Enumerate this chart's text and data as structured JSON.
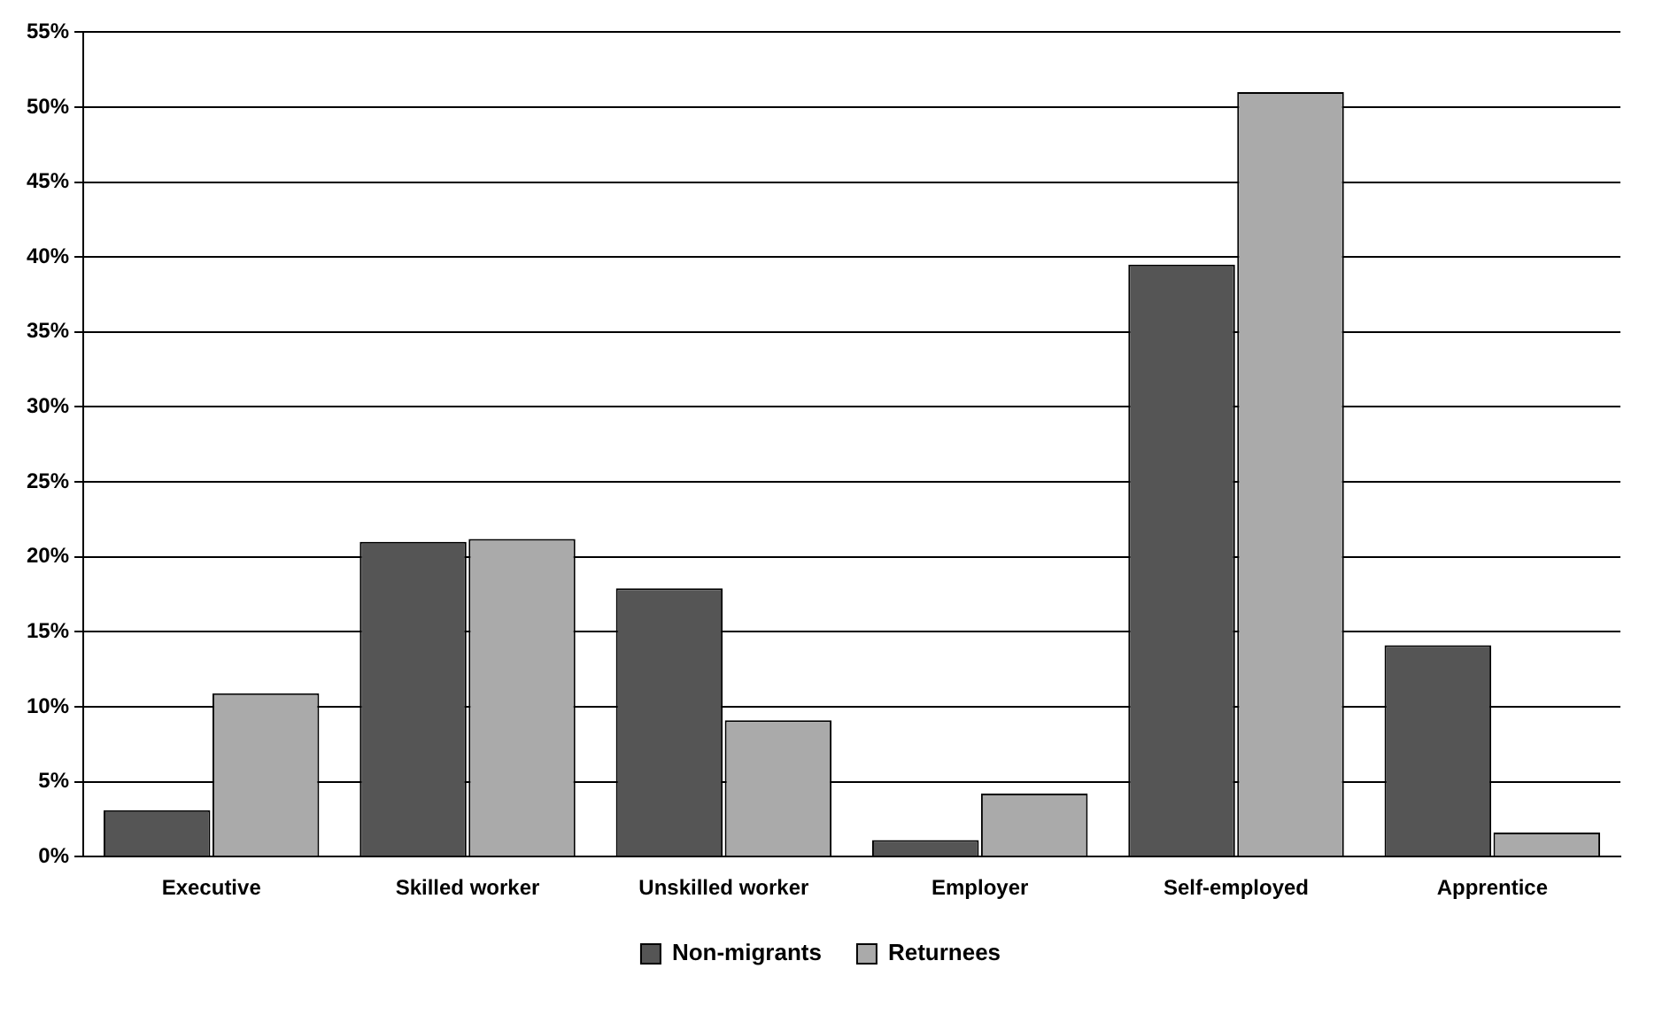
{
  "chart_data": {
    "type": "bar",
    "categories": [
      "Executive",
      "Skilled worker",
      "Unskilled worker",
      "Employer",
      "Self-employed",
      "Apprentice"
    ],
    "series": [
      {
        "name": "Non-migrants",
        "color": "#555555",
        "values": [
          3.1,
          21.0,
          17.9,
          1.1,
          39.5,
          14.1
        ]
      },
      {
        "name": "Returnees",
        "color": "#aaaaaa",
        "values": [
          10.9,
          21.2,
          9.1,
          4.2,
          51.0,
          1.6
        ]
      }
    ],
    "ylim": [
      0,
      55
    ],
    "yticks": [
      {
        "value": 0,
        "label": "0%"
      },
      {
        "value": 5,
        "label": "5%"
      },
      {
        "value": 10,
        "label": "10%"
      },
      {
        "value": 15,
        "label": "15%"
      },
      {
        "value": 20,
        "label": "20%"
      },
      {
        "value": 25,
        "label": "25%"
      },
      {
        "value": 30,
        "label": "30%"
      },
      {
        "value": 35,
        "label": "35%"
      },
      {
        "value": 40,
        "label": "40%"
      },
      {
        "value": 45,
        "label": "45%"
      },
      {
        "value": 50,
        "label": "50%"
      },
      {
        "value": 55,
        "label": "55%"
      }
    ],
    "grid": "y",
    "legend": "bottom"
  }
}
